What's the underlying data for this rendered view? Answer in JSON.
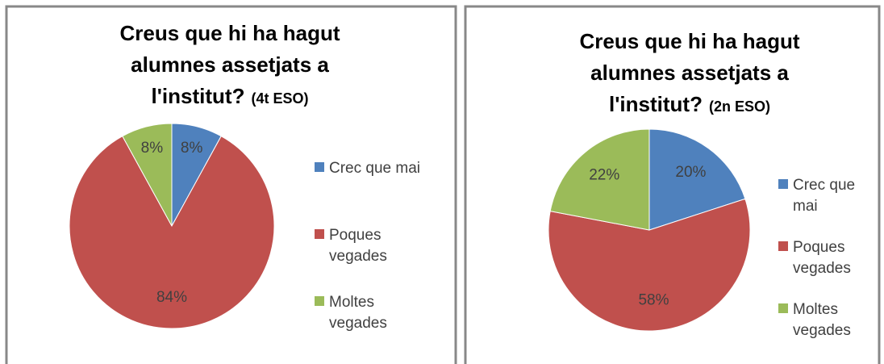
{
  "chart_data": [
    {
      "type": "pie",
      "title": "Creus que hi ha hagut alumnes assetjats a l'institut?",
      "subtitle": "(4t ESO)",
      "categories": [
        "Crec que mai",
        "Poques vegades",
        "Moltes vegades"
      ],
      "values": [
        8,
        84,
        8
      ],
      "value_labels": [
        "8%",
        "84%",
        "8%"
      ],
      "colors": [
        "#4f81bd",
        "#c0504d",
        "#9bbb59"
      ]
    },
    {
      "type": "pie",
      "title": "Creus que hi ha hagut alumnes assetjats a l'institut?",
      "subtitle": "(2n ESO)",
      "categories": [
        "Crec que mai",
        "Poques vegades",
        "Moltes vegades"
      ],
      "values": [
        20,
        58,
        22
      ],
      "value_labels": [
        "20%",
        "58%",
        "22%"
      ],
      "colors": [
        "#4f81bd",
        "#c0504d",
        "#9bbb59"
      ]
    }
  ]
}
